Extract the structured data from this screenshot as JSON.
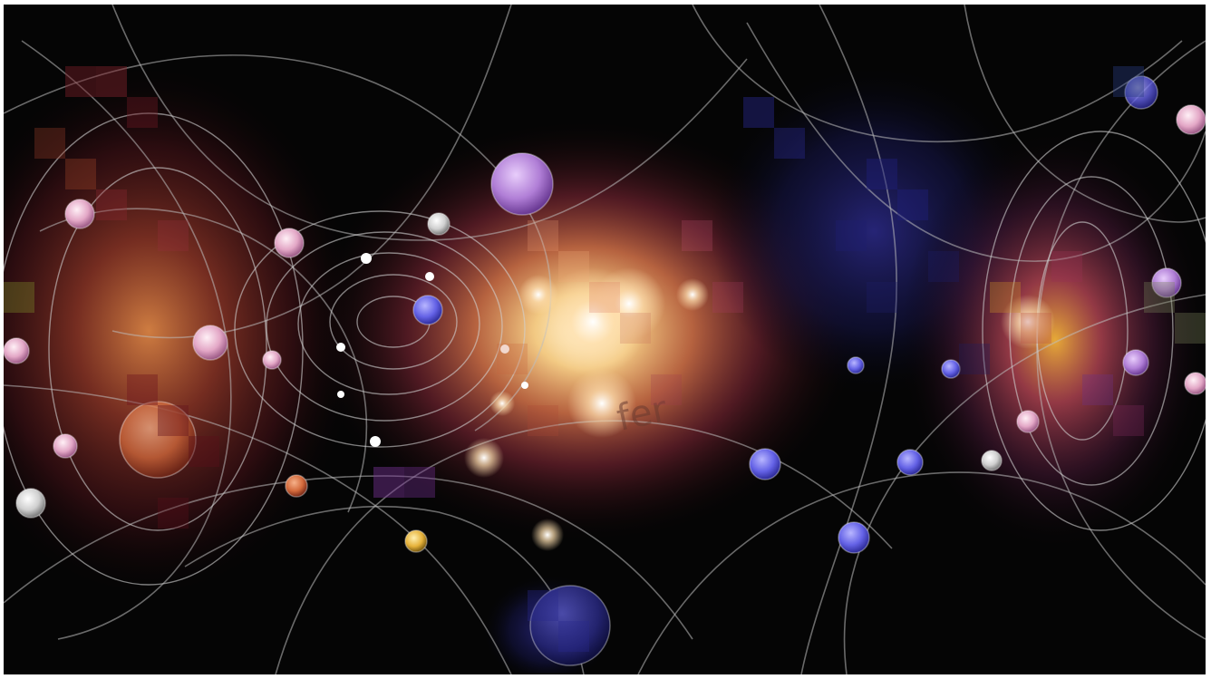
{
  "image": {
    "subject": "particle-physics-collision",
    "background_color": "#050505",
    "palette": {
      "core_hot": "#ffe2a8",
      "core_warm": "#f2a15b",
      "magenta": "#b8476e",
      "crimson": "#5e1520",
      "violet": "#7a3fb8",
      "deep_blue": "#1e1a6a",
      "olive": "#7c8430",
      "track_line": "#bdbdbd",
      "particle_pink": "#e6b6d0",
      "particle_blue": "#5a58e8",
      "particle_white": "#d9d9d9",
      "particle_orange": "#d86a3c",
      "particle_gold": "#e2b33a"
    },
    "watermark": "fer"
  }
}
